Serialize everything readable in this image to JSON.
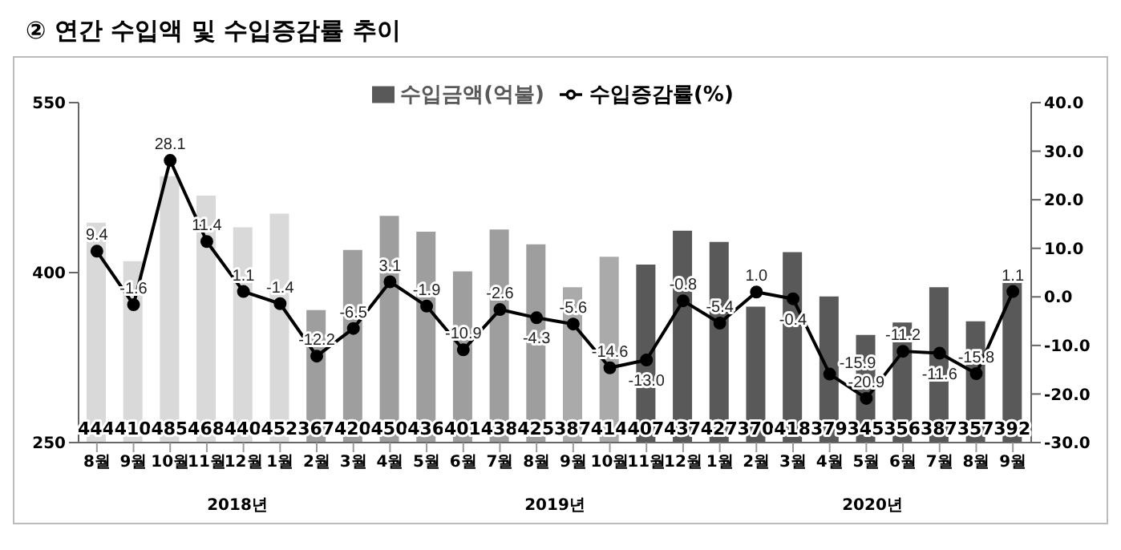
{
  "chart_data": {
    "type": "bar",
    "title": "② 연간 수입액 및 수입증감률 추이",
    "categories": [
      "8월",
      "9월",
      "10월",
      "11월",
      "12월",
      "1월",
      "2월",
      "3월",
      "4월",
      "5월",
      "6월",
      "7월",
      "8월",
      "9월",
      "10월",
      "11월",
      "12월",
      "1월",
      "2월",
      "3월",
      "4월",
      "5월",
      "6월",
      "7월",
      "8월",
      "9월"
    ],
    "series": [
      {
        "name": "수입금액(억불)",
        "color": "#595959",
        "colors": [
          "#d9d9d9",
          "#d9d9d9",
          "#d9d9d9",
          "#d9d9d9",
          "#d9d9d9",
          "#d9d9d9",
          "#9e9e9e",
          "#9e9e9e",
          "#9e9e9e",
          "#9e9e9e",
          "#9e9e9e",
          "#9e9e9e",
          "#9e9e9e",
          "#aaaaaa",
          "#aaaaaa",
          "#595959",
          "#595959",
          "#595959",
          "#595959",
          "#595959",
          "#595959",
          "#595959",
          "#595959",
          "#595959",
          "#595959",
          "#595959"
        ],
        "values": [
          444,
          410,
          485,
          468,
          440,
          452,
          367,
          420,
          450,
          436,
          401,
          438,
          425,
          387,
          414,
          407,
          437,
          427,
          370,
          418,
          379,
          345,
          356,
          387,
          357,
          392
        ]
      },
      {
        "name": "수입증감률(%)",
        "type": "line",
        "axis": "y2",
        "color": "#000000",
        "values": [
          9.4,
          -1.6,
          28.1,
          11.4,
          1.1,
          -1.4,
          -12.2,
          -6.5,
          3.1,
          -1.9,
          -10.9,
          -2.6,
          -4.3,
          -5.6,
          -14.6,
          -13.0,
          -0.8,
          -5.4,
          1.0,
          -0.4,
          -15.9,
          -20.9,
          -11.2,
          -11.6,
          -15.8,
          1.1
        ],
        "value_labels": [
          "9.4",
          "-1.6",
          "28.1",
          "11.4",
          "1.1",
          "-1.4",
          "-12.2",
          "-6.5",
          "3.1",
          "-1.9",
          "-10.9",
          "-2.6",
          "-4.3",
          "-5.6",
          "-14.6",
          "-13.0",
          "-0.8",
          "-5.4",
          "1.0",
          "-0.4",
          "-15.9",
          "-20.9",
          "-11.2",
          "-11.6",
          "-15.8",
          "1.1"
        ]
      }
    ],
    "ylim": [
      250,
      550
    ],
    "yticks": [
      250,
      400,
      550
    ],
    "y2lim": [
      -30,
      40
    ],
    "y2ticks": [
      {
        "value": 40,
        "label": "40.0"
      },
      {
        "value": 30,
        "label": "30.0"
      },
      {
        "value": 20,
        "label": "20.0"
      },
      {
        "value": 10,
        "label": "10.0"
      },
      {
        "value": 0,
        "label": "0.0"
      },
      {
        "value": -10,
        "label": "-10.0"
      },
      {
        "value": -20,
        "label": "-20.0"
      },
      {
        "value": -30,
        "label": "-30.0"
      }
    ],
    "annotations": [
      "2018년",
      "2019년",
      "2020년"
    ],
    "data_labels": true,
    "marker": "circle",
    "line_style": "solid",
    "legend": "top",
    "grid": false
  }
}
